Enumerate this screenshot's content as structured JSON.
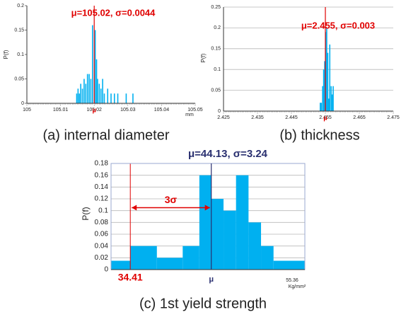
{
  "chart_data": [
    {
      "type": "bar",
      "caption": "(a) internal diameter",
      "y_label": "P(f)",
      "x_label": "mm",
      "annotation": "μ=105.02, σ=0.0044",
      "mean": 105.02,
      "mean_label": "μ",
      "mean_color": "#e00000",
      "color": "#00b0f0",
      "grid": false,
      "x": [
        105.0148,
        105.0152,
        105.0156,
        105.016,
        105.0165,
        105.017,
        105.0175,
        105.018,
        105.0185,
        105.019,
        105.0195,
        105.0203,
        105.0207,
        105.021,
        105.0215,
        105.022,
        105.0225,
        105.023,
        105.024,
        105.025,
        105.026,
        105.027,
        105.0295,
        105.0315
      ],
      "values": [
        0.02,
        0.03,
        0.02,
        0.04,
        0.03,
        0.05,
        0.04,
        0.06,
        0.06,
        0.05,
        0.16,
        0.15,
        0.09,
        0.05,
        0.04,
        0.03,
        0.05,
        0.02,
        0.03,
        0.02,
        0.02,
        0.02,
        0.02,
        0.02
      ],
      "xlim": [
        105,
        105.05
      ],
      "xticks": [
        105,
        105.01,
        105.02,
        105.03,
        105.04,
        105.05
      ],
      "ylim": [
        0,
        0.2
      ],
      "yticks": [
        0,
        0.05,
        0.1,
        0.15,
        0.2
      ]
    },
    {
      "type": "bar",
      "caption": "(b) thickness",
      "y_label": "P(f)",
      "annotation": "μ=2.455, σ=0.003",
      "mean": 2.455,
      "mean_label": "μ",
      "mean_color": "#e00000",
      "color": "#00b0f0",
      "grid": true,
      "x": [
        2.4535,
        2.4538,
        2.4542,
        2.4545,
        2.4548,
        2.4551,
        2.4554,
        2.4557,
        2.456,
        2.4563,
        2.4567,
        2.457,
        2.4573
      ],
      "values": [
        0.02,
        0.02,
        0.06,
        0.1,
        0.12,
        0.19,
        0.2,
        0.14,
        0.03,
        0.16,
        0.06,
        0.04,
        0.06
      ],
      "xlim": [
        2.425,
        2.475
      ],
      "xticks": [
        2.425,
        2.435,
        2.445,
        2.455,
        2.465,
        2.475
      ],
      "ylim": [
        0,
        0.25
      ],
      "yticks": [
        0,
        0.05,
        0.1,
        0.15,
        0.2,
        0.25
      ]
    },
    {
      "type": "histogram",
      "caption": "(c) 1st yield strength",
      "y_label": "P(f)",
      "x_label": "Kg/mm²",
      "annotation": "μ=44.13, σ=3.24",
      "mean": 44.13,
      "mean_label": "μ",
      "mean_color": "#2a3070",
      "arrow_label": "3σ",
      "limit_color": "#e00000",
      "color": "#00b0f0",
      "grid": true,
      "bins": [
        32.1,
        34.41,
        37.6,
        40.7,
        42.7,
        44.13,
        45.6,
        47.1,
        48.6,
        50.1,
        51.6,
        55.36
      ],
      "values": [
        0.015,
        0.04,
        0.02,
        0.04,
        0.16,
        0.12,
        0.1,
        0.16,
        0.08,
        0.04,
        0.015
      ],
      "xlim": [
        32.1,
        55.36
      ],
      "xticks": [
        34.41,
        55.36
      ],
      "ylim": [
        0,
        0.18
      ],
      "yticks": [
        0,
        0.02,
        0.04,
        0.06,
        0.08,
        0.1,
        0.12,
        0.14,
        0.16,
        0.18
      ]
    }
  ]
}
